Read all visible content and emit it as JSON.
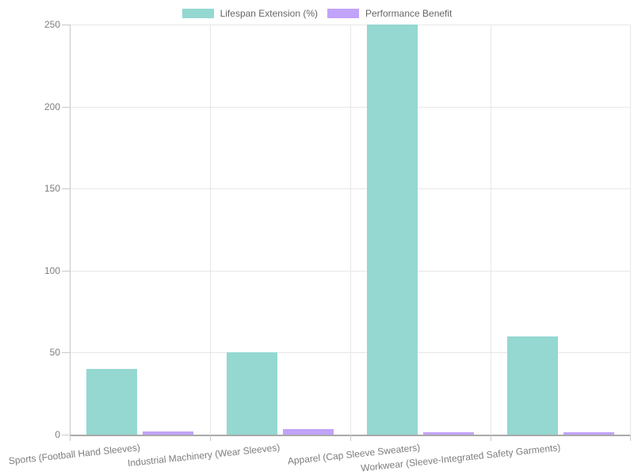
{
  "chart_data": {
    "type": "bar",
    "title": "",
    "categories": [
      "Sports (Football Hand Sleeves)",
      "Industrial Machinery (Wear Sleeves)",
      "Apparel (Cap Sleeve Sweaters)",
      "Workwear (Sleeve-Integrated Safety Garments)"
    ],
    "series": [
      {
        "name": "Lifespan Extension (%)",
        "color": "#94d8d1",
        "values": [
          40,
          50,
          250,
          60
        ]
      },
      {
        "name": "Performance Benefit",
        "color": "#c2a3fa",
        "values": [
          1.8,
          3.5,
          1.5,
          1.5
        ]
      }
    ],
    "xlabel": "",
    "ylabel": "",
    "ylim": [
      0,
      250
    ],
    "yticks": [
      0,
      50,
      100,
      150,
      200,
      250
    ],
    "grid": true,
    "legend_position": "top",
    "styles": {
      "background": "#ffffff",
      "grid_color": "#e7e7e7",
      "x_axis_color": "#a9a9a9",
      "y_axis_color": "#c6c6c6",
      "tick_mark_color": "#c9c9c9",
      "axis_label_color": "#7d7d7d",
      "legend_text_color": "#666666"
    }
  }
}
